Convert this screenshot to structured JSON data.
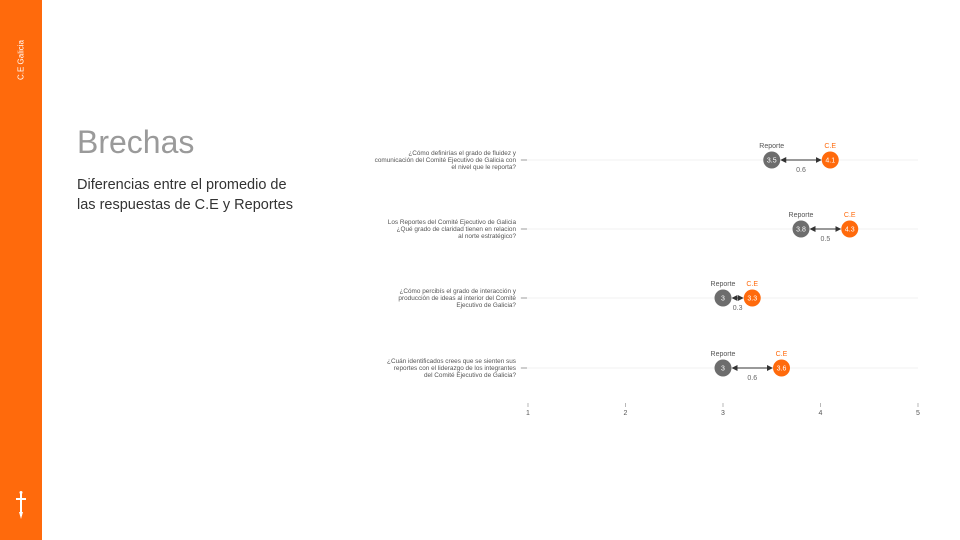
{
  "sidebar": {
    "label": "C.E Galicia",
    "logo_icon": "dagger-cross-icon"
  },
  "header": {
    "title": "Brechas",
    "subtitle": "Diferencias entre el promedio de las respuestas de C.E y Reportes"
  },
  "colors": {
    "accent": "#ff6a0c",
    "reporte": "#6d6d6d",
    "ce": "#ff6a0c",
    "gap_text": "#666666"
  },
  "chart_data": {
    "type": "dumbbell",
    "x_ticks": [
      1,
      2,
      3,
      4,
      5
    ],
    "xlim": [
      1,
      5
    ],
    "grid": true,
    "series_names": [
      "Reporte",
      "C.E"
    ],
    "rows": [
      {
        "question_lines": [
          "¿Cómo definirías el grado de fluidez y",
          "comunicación del Comité Ejecutivo de Galicia con",
          "el nivel que le reporta?"
        ],
        "reporte": 3.5,
        "reporte_label": "3.5",
        "ce": 4.1,
        "ce_label": "4.1",
        "gap": "0.6"
      },
      {
        "question_lines": [
          "Los Reportes del Comité Ejecutivo de Galicia",
          "¿Qué grado de claridad tienen en relacion",
          "al norte estratégico?"
        ],
        "reporte": 3.8,
        "reporte_label": "3.8",
        "ce": 4.3,
        "ce_label": "4.3",
        "gap": "0.5"
      },
      {
        "question_lines": [
          "¿Cómo percibís el grado de interacción y",
          "producción de ideas al interior del Comité",
          "Ejecutivo de Galicia?"
        ],
        "reporte": 3.0,
        "reporte_label": "3",
        "ce": 3.3,
        "ce_label": "3.3",
        "gap": "0.3"
      },
      {
        "question_lines": [
          "¿Cuán identificados crees que se sienten sus",
          "reportes con el liderazgo de los integrantes",
          "del Comité Ejecutivo de Galicia?"
        ],
        "reporte": 3.0,
        "reporte_label": "3",
        "ce": 3.6,
        "ce_label": "3.6",
        "gap": "0.6"
      }
    ]
  }
}
